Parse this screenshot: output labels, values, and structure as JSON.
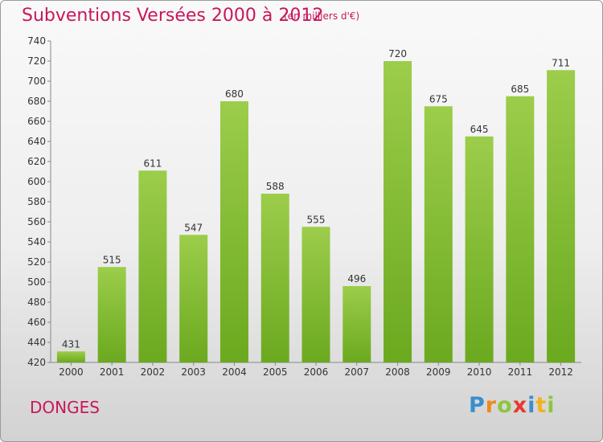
{
  "header": {
    "title": "Subventions Versées 2000 à 2012",
    "unit": "(en milliers d'€)"
  },
  "footer": {
    "place": "DONGES",
    "logo": "Proxiti"
  },
  "colors": {
    "bar_light": "#9ccd4b",
    "bar_dark": "#6ba91f",
    "title": "#c8175b"
  },
  "chart_data": {
    "type": "bar",
    "title": "Subventions Versées 2000 à 2012",
    "subtitle": "(en milliers d'€)",
    "categories": [
      "2000",
      "2001",
      "2002",
      "2003",
      "2004",
      "2005",
      "2006",
      "2007",
      "2008",
      "2009",
      "2010",
      "2011",
      "2012"
    ],
    "values": [
      431,
      515,
      611,
      547,
      680,
      588,
      555,
      496,
      720,
      675,
      645,
      685,
      711
    ],
    "ylim": [
      420,
      740
    ],
    "yticks": [
      420,
      440,
      460,
      480,
      500,
      520,
      540,
      560,
      580,
      600,
      620,
      640,
      660,
      680,
      700,
      720,
      740
    ],
    "grid": false,
    "data_labels": true
  }
}
